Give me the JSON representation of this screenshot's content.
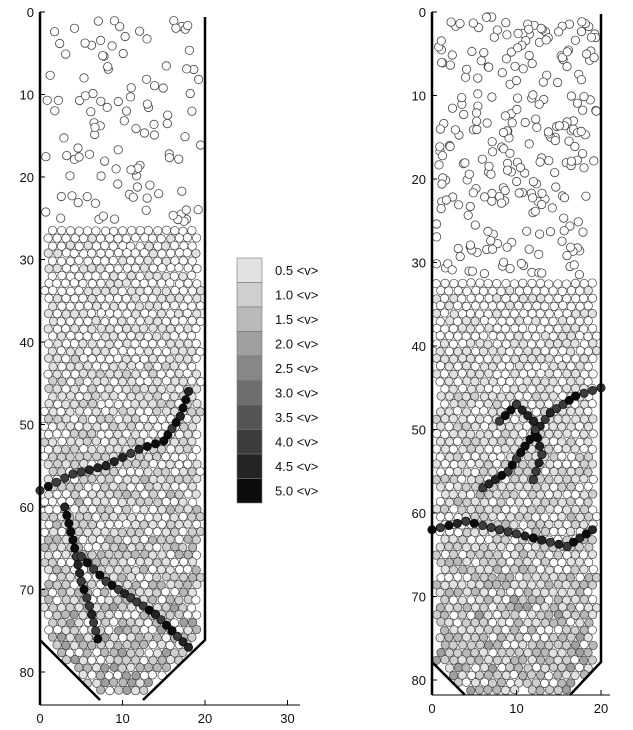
{
  "chart_data": [
    {
      "type": "scatter",
      "ylim": [
        0,
        84
      ],
      "xlim": [
        0,
        32
      ],
      "y_inverted": true,
      "y_ticks": [
        "0",
        "10",
        "20",
        "30",
        "40",
        "50",
        "60",
        "70",
        "80"
      ],
      "x_ticks": [
        "0",
        "10",
        "20",
        "30"
      ],
      "walls": "vertical silo with hopper outlet, width 20",
      "bed_surface_depth": 26,
      "force_chains": [
        {
          "points": [
            [
              0,
              58
            ],
            [
              4,
              56
            ],
            [
              8,
              55
            ],
            [
              12,
              53
            ],
            [
              15,
              52
            ],
            [
              17,
              49
            ],
            [
              18,
              46
            ]
          ]
        },
        {
          "points": [
            [
              3,
              60
            ],
            [
              4,
              64
            ],
            [
              5,
              69
            ],
            [
              6,
              72
            ],
            [
              7,
              76
            ]
          ]
        },
        {
          "points": [
            [
              5,
              66
            ],
            [
              8,
              69
            ],
            [
              11,
              71
            ],
            [
              14,
              73
            ],
            [
              16,
              75
            ],
            [
              18,
              77
            ]
          ]
        }
      ]
    },
    {
      "type": "scatter",
      "ylim": [
        0,
        80
      ],
      "xlim": [
        0,
        22
      ],
      "y_inverted": true,
      "y_ticks": [
        "0",
        "10",
        "20",
        "30",
        "40",
        "50",
        "60",
        "70",
        "80"
      ],
      "x_ticks": [
        "0",
        "10",
        "20"
      ],
      "walls": "vertical silo with hopper outlet, width 20",
      "bed_surface_depth": 32,
      "force_chains": [
        {
          "points": [
            [
              0,
              62
            ],
            [
              4,
              61
            ],
            [
              8,
              62
            ],
            [
              12,
              63
            ],
            [
              16,
              64
            ],
            [
              19,
              62
            ]
          ]
        },
        {
          "points": [
            [
              6,
              57
            ],
            [
              9,
              55
            ],
            [
              11,
              52
            ],
            [
              14,
              48
            ],
            [
              17,
              46
            ],
            [
              20,
              45
            ]
          ]
        },
        {
          "points": [
            [
              8,
              49
            ],
            [
              10,
              47
            ],
            [
              12,
              49
            ],
            [
              13,
              53
            ],
            [
              12,
              56
            ]
          ]
        }
      ]
    }
  ],
  "legend": {
    "items": [
      {
        "label": "0.5 <v>",
        "color": "#e2e2e2"
      },
      {
        "label": "1.0 <v>",
        "color": "#cfcfcf"
      },
      {
        "label": "1.5 <v>",
        "color": "#b9b9b9"
      },
      {
        "label": "2.0 <v>",
        "color": "#a0a0a0"
      },
      {
        "label": "2.5 <v>",
        "color": "#878787"
      },
      {
        "label": "3.0 <v>",
        "color": "#6e6e6e"
      },
      {
        "label": "3.5 <v>",
        "color": "#555555"
      },
      {
        "label": "4.0 <v>",
        "color": "#3c3c3c"
      },
      {
        "label": "4.5 <v>",
        "color": "#242424"
      },
      {
        "label": "5.0 <v>",
        "color": "#0c0c0c"
      }
    ]
  },
  "colors": {
    "particle_outline": "#444444",
    "particle_light": "#ffffff",
    "wall": "#000000"
  }
}
